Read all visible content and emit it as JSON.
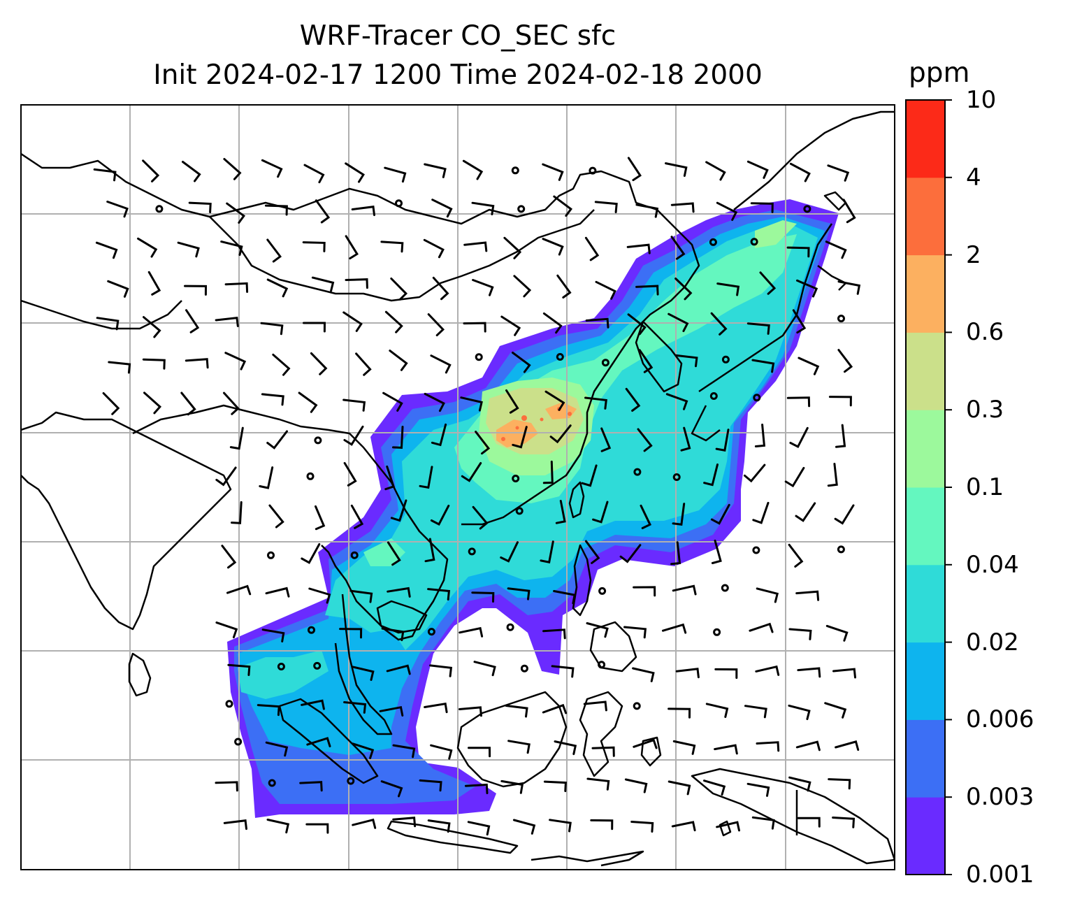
{
  "title": {
    "line1": "WRF-Tracer CO_SEC sfc",
    "line2": "Init 2024-02-17 1200 Time 2024-02-18 2000"
  },
  "colorbar": {
    "unit": "ppm",
    "levels": [
      "0.001",
      "0.003",
      "0.006",
      "0.02",
      "0.04",
      "0.1",
      "0.3",
      "0.6",
      "2",
      "4",
      "10"
    ],
    "colors": [
      "#6a2bff",
      "#3c6ff5",
      "#0eb4ee",
      "#2fdbd8",
      "#64f7bf",
      "#9cf99c",
      "#cbe08a",
      "#fcb060",
      "#fc6e3c",
      "#fc2a18"
    ]
  },
  "map": {
    "gridlines": true,
    "overlay": "CO_SEC surface concentration with wind barbs",
    "plume_levels_present": [
      "0.001",
      "0.003",
      "0.006",
      "0.02",
      "0.04",
      "0.1",
      "0.3",
      "0.6",
      "2"
    ]
  },
  "colors": {
    "coastline": "#000000",
    "grid": "#b0b0b0",
    "frame": "#000000"
  }
}
